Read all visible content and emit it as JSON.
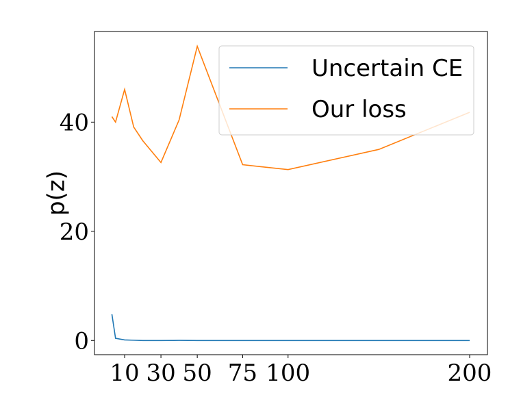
{
  "chart_data": {
    "type": "line",
    "y_label": "p(z)",
    "x": [
      3,
      5,
      10,
      15,
      20,
      30,
      40,
      50,
      75,
      100,
      150,
      200
    ],
    "series": [
      {
        "name": "Uncertain CE",
        "color": "#1f77b4",
        "values": [
          4.8,
          0.4,
          0.1,
          0.05,
          0.0,
          0.0,
          0.02,
          0.0,
          0.0,
          0.0,
          0.0,
          0.0
        ]
      },
      {
        "name": "Our loss",
        "color": "#ff7f0e",
        "values": [
          41.0,
          40.0,
          46.0,
          39.1,
          36.6,
          32.6,
          40.4,
          53.9,
          32.2,
          31.3,
          35.0,
          41.8
        ]
      }
    ],
    "xlim": [
      -6.6,
      209.8
    ],
    "ylim": [
      -2.6,
      56.6
    ],
    "xticks": [
      10,
      30,
      50,
      75,
      100,
      200
    ],
    "yticks": [
      0,
      20,
      40
    ],
    "legend": "upper right"
  }
}
